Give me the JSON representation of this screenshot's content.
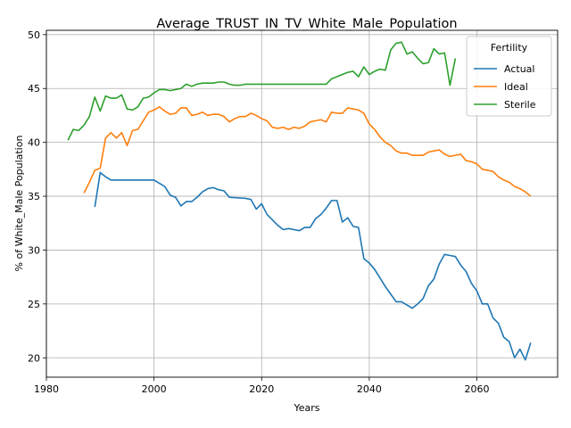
{
  "chart_data": {
    "type": "line",
    "title": "Average_TRUST_IN_TV_White_Male_Population",
    "xlabel": "Years",
    "ylabel": "% of White_Male Population",
    "xlim": [
      1980,
      2075
    ],
    "ylim": [
      18.2,
      50.4
    ],
    "xticks": [
      1980,
      2000,
      2020,
      2040,
      2060
    ],
    "yticks": [
      20,
      25,
      30,
      35,
      40,
      45,
      50
    ],
    "grid": true,
    "legend": {
      "title": "Fertility",
      "position": "top-right"
    },
    "series": [
      {
        "name": "Actual",
        "color": "#1f77b4",
        "points": [
          [
            1989,
            34.0
          ],
          [
            1990,
            37.2
          ],
          [
            1991,
            36.8
          ],
          [
            1992,
            36.5
          ],
          [
            1993,
            36.5
          ],
          [
            1994,
            36.5
          ],
          [
            1995,
            36.5
          ],
          [
            1996,
            36.5
          ],
          [
            1997,
            36.5
          ],
          [
            1998,
            36.5
          ],
          [
            1999,
            36.5
          ],
          [
            2000,
            36.5
          ],
          [
            2001,
            36.2
          ],
          [
            2002,
            35.9
          ],
          [
            2003,
            35.1
          ],
          [
            2004,
            34.9
          ],
          [
            2005,
            34.1
          ],
          [
            2006,
            34.5
          ],
          [
            2007,
            34.5
          ],
          [
            2008,
            34.9
          ],
          [
            2009,
            35.4
          ],
          [
            2010,
            35.7
          ],
          [
            2011,
            35.8
          ],
          [
            2012,
            35.6
          ],
          [
            2013,
            35.5
          ],
          [
            2014,
            34.9
          ],
          [
            2017,
            34.8
          ],
          [
            2018,
            34.7
          ],
          [
            2019,
            33.8
          ],
          [
            2020,
            34.3
          ],
          [
            2021,
            33.3
          ],
          [
            2022,
            32.8
          ],
          [
            2023,
            32.3
          ],
          [
            2024,
            31.9
          ],
          [
            2025,
            32.0
          ],
          [
            2026,
            31.9
          ],
          [
            2027,
            31.8
          ],
          [
            2028,
            32.1
          ],
          [
            2029,
            32.1
          ],
          [
            2030,
            32.9
          ],
          [
            2031,
            33.3
          ],
          [
            2032,
            33.9
          ],
          [
            2033,
            34.6
          ],
          [
            2034,
            34.6
          ],
          [
            2035,
            32.6
          ],
          [
            2036,
            33.0
          ],
          [
            2037,
            32.2
          ],
          [
            2038,
            32.1
          ],
          [
            2039,
            29.2
          ],
          [
            2040,
            28.8
          ],
          [
            2041,
            28.2
          ],
          [
            2042,
            27.4
          ],
          [
            2043,
            26.6
          ],
          [
            2044,
            25.9
          ],
          [
            2045,
            25.2
          ],
          [
            2046,
            25.2
          ],
          [
            2047,
            24.9
          ],
          [
            2048,
            24.6
          ],
          [
            2049,
            25.0
          ],
          [
            2050,
            25.5
          ],
          [
            2051,
            26.7
          ],
          [
            2052,
            27.3
          ],
          [
            2053,
            28.7
          ],
          [
            2054,
            29.6
          ],
          [
            2055,
            29.5
          ],
          [
            2056,
            29.4
          ],
          [
            2057,
            28.6
          ],
          [
            2058,
            28.0
          ],
          [
            2059,
            26.9
          ],
          [
            2060,
            26.2
          ],
          [
            2061,
            25.0
          ],
          [
            2062,
            25.0
          ],
          [
            2063,
            23.7
          ],
          [
            2064,
            23.2
          ],
          [
            2065,
            21.9
          ],
          [
            2066,
            21.5
          ],
          [
            2067,
            20.0
          ],
          [
            2068,
            20.8
          ],
          [
            2069,
            19.8
          ],
          [
            2070,
            21.4
          ]
        ]
      },
      {
        "name": "Ideal",
        "color": "#ff7f0e",
        "points": [
          [
            1987,
            35.3
          ],
          [
            1988,
            36.3
          ],
          [
            1989,
            37.4
          ],
          [
            1990,
            37.6
          ],
          [
            1991,
            40.4
          ],
          [
            1992,
            40.9
          ],
          [
            1993,
            40.4
          ],
          [
            1994,
            40.9
          ],
          [
            1995,
            39.7
          ],
          [
            1996,
            41.1
          ],
          [
            1997,
            41.2
          ],
          [
            1998,
            42.0
          ],
          [
            1999,
            42.8
          ],
          [
            2000,
            43.0
          ],
          [
            2001,
            43.3
          ],
          [
            2002,
            42.9
          ],
          [
            2003,
            42.6
          ],
          [
            2004,
            42.7
          ],
          [
            2005,
            43.2
          ],
          [
            2006,
            43.2
          ],
          [
            2007,
            42.5
          ],
          [
            2008,
            42.6
          ],
          [
            2009,
            42.8
          ],
          [
            2010,
            42.5
          ],
          [
            2011,
            42.6
          ],
          [
            2012,
            42.6
          ],
          [
            2013,
            42.4
          ],
          [
            2014,
            41.9
          ],
          [
            2015,
            42.2
          ],
          [
            2016,
            42.4
          ],
          [
            2017,
            42.4
          ],
          [
            2018,
            42.7
          ],
          [
            2019,
            42.5
          ],
          [
            2020,
            42.2
          ],
          [
            2021,
            42.0
          ],
          [
            2022,
            41.4
          ],
          [
            2023,
            41.3
          ],
          [
            2024,
            41.4
          ],
          [
            2025,
            41.2
          ],
          [
            2026,
            41.4
          ],
          [
            2027,
            41.3
          ],
          [
            2028,
            41.5
          ],
          [
            2029,
            41.9
          ],
          [
            2030,
            42.0
          ],
          [
            2031,
            42.1
          ],
          [
            2032,
            41.9
          ],
          [
            2033,
            42.8
          ],
          [
            2034,
            42.7
          ],
          [
            2035,
            42.7
          ],
          [
            2036,
            43.2
          ],
          [
            2037,
            43.1
          ],
          [
            2038,
            43.0
          ],
          [
            2039,
            42.7
          ],
          [
            2040,
            41.7
          ],
          [
            2041,
            41.2
          ],
          [
            2042,
            40.5
          ],
          [
            2043,
            40.0
          ],
          [
            2044,
            39.7
          ],
          [
            2045,
            39.2
          ],
          [
            2046,
            39.0
          ],
          [
            2047,
            39.0
          ],
          [
            2048,
            38.8
          ],
          [
            2049,
            38.8
          ],
          [
            2050,
            38.8
          ],
          [
            2051,
            39.1
          ],
          [
            2052,
            39.2
          ],
          [
            2053,
            39.3
          ],
          [
            2054,
            38.9
          ],
          [
            2055,
            38.7
          ],
          [
            2056,
            38.8
          ],
          [
            2057,
            38.9
          ],
          [
            2058,
            38.3
          ],
          [
            2059,
            38.2
          ],
          [
            2060,
            38.0
          ],
          [
            2061,
            37.5
          ],
          [
            2062,
            37.4
          ],
          [
            2063,
            37.3
          ],
          [
            2064,
            36.8
          ],
          [
            2065,
            36.5
          ],
          [
            2066,
            36.3
          ],
          [
            2067,
            35.9
          ],
          [
            2068,
            35.7
          ],
          [
            2069,
            35.4
          ],
          [
            2070,
            35.0
          ]
        ]
      },
      {
        "name": "Sterile",
        "color": "#2ca02c",
        "points": [
          [
            1984,
            40.2
          ],
          [
            1985,
            41.2
          ],
          [
            1986,
            41.1
          ],
          [
            1987,
            41.6
          ],
          [
            1988,
            42.4
          ],
          [
            1989,
            44.2
          ],
          [
            1990,
            42.9
          ],
          [
            1991,
            44.3
          ],
          [
            1992,
            44.1
          ],
          [
            1993,
            44.1
          ],
          [
            1994,
            44.4
          ],
          [
            1995,
            43.1
          ],
          [
            1996,
            43.0
          ],
          [
            1997,
            43.3
          ],
          [
            1998,
            44.1
          ],
          [
            1999,
            44.2
          ],
          [
            2000,
            44.6
          ],
          [
            2001,
            44.9
          ],
          [
            2002,
            44.9
          ],
          [
            2003,
            44.8
          ],
          [
            2004,
            44.9
          ],
          [
            2005,
            45.0
          ],
          [
            2006,
            45.4
          ],
          [
            2007,
            45.2
          ],
          [
            2008,
            45.4
          ],
          [
            2009,
            45.5
          ],
          [
            2010,
            45.5
          ],
          [
            2011,
            45.5
          ],
          [
            2012,
            45.6
          ],
          [
            2013,
            45.6
          ],
          [
            2014,
            45.4
          ],
          [
            2015,
            45.3
          ],
          [
            2016,
            45.3
          ],
          [
            2017,
            45.4
          ],
          [
            2018,
            45.4
          ],
          [
            2019,
            45.4
          ],
          [
            2020,
            45.4
          ],
          [
            2025,
            45.4
          ],
          [
            2030,
            45.4
          ],
          [
            2032,
            45.4
          ],
          [
            2033,
            45.9
          ],
          [
            2034,
            46.1
          ],
          [
            2035,
            46.3
          ],
          [
            2036,
            46.5
          ],
          [
            2037,
            46.6
          ],
          [
            2038,
            46.1
          ],
          [
            2039,
            47.0
          ],
          [
            2040,
            46.3
          ],
          [
            2041,
            46.6
          ],
          [
            2042,
            46.8
          ],
          [
            2043,
            46.7
          ],
          [
            2044,
            48.6
          ],
          [
            2045,
            49.2
          ],
          [
            2046,
            49.3
          ],
          [
            2047,
            48.2
          ],
          [
            2048,
            48.4
          ],
          [
            2049,
            47.8
          ],
          [
            2050,
            47.3
          ],
          [
            2051,
            47.4
          ],
          [
            2052,
            48.7
          ],
          [
            2053,
            48.2
          ],
          [
            2054,
            48.3
          ],
          [
            2055,
            45.3
          ],
          [
            2056,
            47.8
          ]
        ]
      }
    ]
  }
}
